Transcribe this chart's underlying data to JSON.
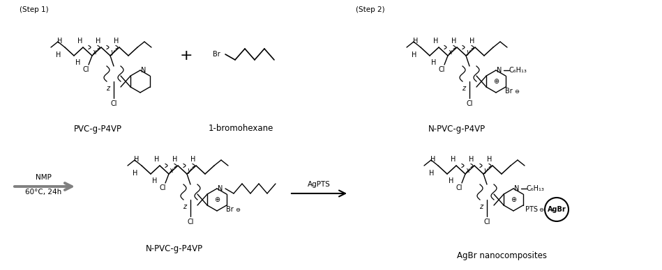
{
  "bg_color": "#ffffff",
  "step1_label": "(Step 1)",
  "step2_label": "(Step 2)",
  "pvc_label": "PVC-g-P4VP",
  "bromohexane_label": "1-bromohexane",
  "npvc_label_tr": "N-PVC-g-P4VP",
  "npvc_label_bl": "N-PVC-g-P4VP",
  "agbr_label": "AgBr nanocomposites",
  "nmp_line1": "NMP",
  "nmp_line2": "60°C, 24h",
  "agpts_label": "AgPTS"
}
